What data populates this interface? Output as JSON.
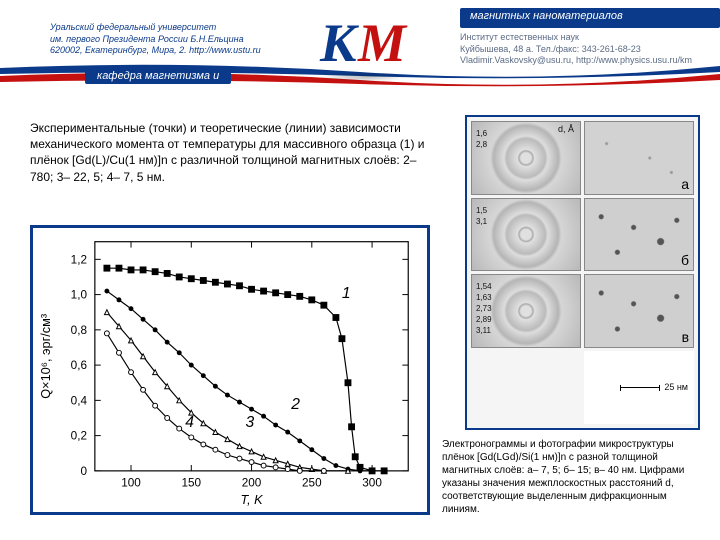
{
  "header": {
    "top_right_label": "магнитных наноматериалов",
    "left_text": "Уральский федеральный университет\nим. первого Президента России Б.Н.Ельцина\n620002, Екатеринбург, Мира, 2. http://www.ustu.ru",
    "right_text": "Институт естественных наук\nКуйбышева, 48 а. Тел./факс: 343-261-68-23\nVladimir.Vaskovsky@usu.ru, http://www.physics.usu.ru/km",
    "bottom_left_label": "кафедра магнетизма и",
    "logo_letters": [
      "К",
      "М"
    ],
    "swoosh_colors": [
      "#0b3a8a",
      "#c51010"
    ]
  },
  "left_caption": "Экспериментальные (точки) и теоретические (линии) зависимости механического момента от температуры для массивного образца (1) и плёнок [Gd(L)/Cu(1 нм)]n с различной толщиной магнитных слоёв: 2– 780; 3– 22, 5; 4– 7, 5 нм.",
  "chart": {
    "type": "line+scatter",
    "xlabel": "T, K",
    "ylabel": "Q×10⁶, эрг/см³",
    "xlim": [
      70,
      330
    ],
    "ylim": [
      0,
      1.3
    ],
    "xticks": [
      100,
      150,
      200,
      250,
      300
    ],
    "yticks": [
      0,
      "0,2",
      "0,4",
      "0,6",
      "0,8",
      "1,0",
      "1,2"
    ],
    "ytick_vals": [
      0,
      0.2,
      0.4,
      0.6,
      0.8,
      1.0,
      1.2
    ],
    "background_color": "#ffffff",
    "axis_color": "#000000",
    "tick_fontsize": 12,
    "label_fontsize": 13,
    "series": [
      {
        "id": "1",
        "label": "1",
        "marker": "square-filled",
        "marker_size": 7,
        "marker_color": "#000000",
        "line_color": "#000000",
        "line_width": 1.2,
        "points": [
          [
            80,
            1.15
          ],
          [
            90,
            1.15
          ],
          [
            100,
            1.14
          ],
          [
            110,
            1.14
          ],
          [
            120,
            1.13
          ],
          [
            130,
            1.12
          ],
          [
            140,
            1.1
          ],
          [
            150,
            1.09
          ],
          [
            160,
            1.08
          ],
          [
            170,
            1.07
          ],
          [
            180,
            1.06
          ],
          [
            190,
            1.05
          ],
          [
            200,
            1.03
          ],
          [
            210,
            1.02
          ],
          [
            220,
            1.01
          ],
          [
            230,
            1.0
          ],
          [
            240,
            0.99
          ],
          [
            250,
            0.97
          ],
          [
            260,
            0.94
          ],
          [
            270,
            0.87
          ],
          [
            275,
            0.75
          ],
          [
            280,
            0.5
          ],
          [
            283,
            0.25
          ],
          [
            286,
            0.08
          ],
          [
            290,
            0.02
          ],
          [
            300,
            0.0
          ],
          [
            310,
            0.0
          ]
        ]
      },
      {
        "id": "2",
        "label": "2",
        "marker": "circle-filled",
        "marker_size": 5,
        "marker_color": "#000000",
        "line_color": "#000000",
        "line_width": 1.2,
        "points": [
          [
            80,
            1.02
          ],
          [
            90,
            0.97
          ],
          [
            100,
            0.92
          ],
          [
            110,
            0.86
          ],
          [
            120,
            0.8
          ],
          [
            130,
            0.73
          ],
          [
            140,
            0.67
          ],
          [
            150,
            0.6
          ],
          [
            160,
            0.54
          ],
          [
            170,
            0.48
          ],
          [
            180,
            0.43
          ],
          [
            190,
            0.39
          ],
          [
            200,
            0.35
          ],
          [
            210,
            0.31
          ],
          [
            220,
            0.26
          ],
          [
            230,
            0.22
          ],
          [
            240,
            0.17
          ],
          [
            250,
            0.12
          ],
          [
            260,
            0.07
          ],
          [
            270,
            0.03
          ],
          [
            280,
            0.01
          ],
          [
            290,
            0.0
          ],
          [
            300,
            0.0
          ]
        ]
      },
      {
        "id": "3",
        "label": "3",
        "marker": "triangle-open",
        "marker_size": 5,
        "marker_color": "#000000",
        "line_color": "#000000",
        "line_width": 1.2,
        "points": [
          [
            80,
            0.9
          ],
          [
            90,
            0.82
          ],
          [
            100,
            0.74
          ],
          [
            110,
            0.65
          ],
          [
            120,
            0.56
          ],
          [
            130,
            0.48
          ],
          [
            140,
            0.4
          ],
          [
            150,
            0.33
          ],
          [
            160,
            0.27
          ],
          [
            170,
            0.22
          ],
          [
            180,
            0.18
          ],
          [
            190,
            0.14
          ],
          [
            200,
            0.11
          ],
          [
            210,
            0.08
          ],
          [
            220,
            0.06
          ],
          [
            230,
            0.04
          ],
          [
            240,
            0.02
          ],
          [
            250,
            0.01
          ],
          [
            260,
            0.0
          ],
          [
            280,
            0.0
          ]
        ]
      },
      {
        "id": "4",
        "label": "4",
        "marker": "circle-open",
        "marker_size": 5,
        "marker_color": "#000000",
        "line_color": "#000000",
        "line_width": 1.2,
        "points": [
          [
            80,
            0.78
          ],
          [
            90,
            0.67
          ],
          [
            100,
            0.56
          ],
          [
            110,
            0.46
          ],
          [
            120,
            0.37
          ],
          [
            130,
            0.3
          ],
          [
            140,
            0.24
          ],
          [
            150,
            0.19
          ],
          [
            160,
            0.15
          ],
          [
            170,
            0.12
          ],
          [
            180,
            0.09
          ],
          [
            190,
            0.07
          ],
          [
            200,
            0.05
          ],
          [
            210,
            0.03
          ],
          [
            220,
            0.02
          ],
          [
            230,
            0.01
          ],
          [
            240,
            0.0
          ],
          [
            260,
            0.0
          ]
        ]
      }
    ],
    "series_label_positions": {
      "1": [
        275,
        0.98
      ],
      "2": [
        233,
        0.35
      ],
      "3": [
        195,
        0.25
      ],
      "4": [
        145,
        0.25
      ]
    }
  },
  "micrographs": {
    "d_header": "d, Å",
    "rows": [
      {
        "letter": "а",
        "diff_values": [
          "1,6",
          "2,8"
        ],
        "photo_class": "photo-light"
      },
      {
        "letter": "б",
        "diff_values": [
          "1,5",
          "3,1"
        ],
        "photo_class": "photo-spots"
      },
      {
        "letter": "в",
        "diff_values": [
          "1,54",
          "1,63",
          "2,73",
          "2,89",
          "3,11"
        ],
        "photo_class": "photo-spots"
      }
    ],
    "scale_label": "25 нм"
  },
  "right_caption": "Электронограммы и фотографии микроструктуры плёнок [Gd(LGd)/Si(1 нм)]n с разной толщиной магнитных слоёв: а– 7, 5; б– 15; в– 40 нм. Цифрами указаны значения межплоскостных расстояний d, соответствующие выделенным дифракционным линиям."
}
